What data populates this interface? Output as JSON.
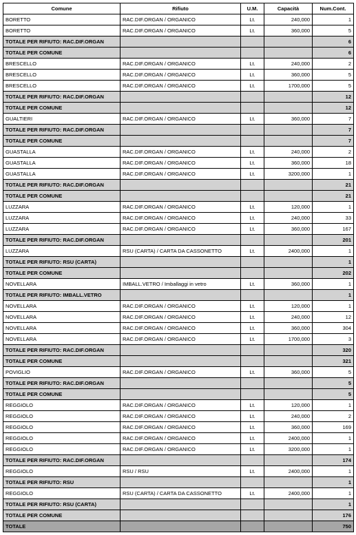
{
  "headers": [
    "Comune",
    "Rifiuto",
    "U.M.",
    "Capacità",
    "Num.Cont."
  ],
  "rows": [
    {
      "type": "data",
      "c1": "BORETTO",
      "c2": "RAC.DIF.ORGAN / ORGANICO",
      "um": "Lt.",
      "cap": "240,000",
      "num": "1"
    },
    {
      "type": "data",
      "c1": "BORETTO",
      "c2": "RAC.DIF.ORGAN / ORGANICO",
      "um": "Lt.",
      "cap": "360,000",
      "num": "5"
    },
    {
      "type": "sub",
      "c1": "TOTALE PER RIFIUTO: RAC.DIF.ORGAN",
      "num": "6"
    },
    {
      "type": "sub",
      "c1": "TOTALE PER COMUNE",
      "num": "6"
    },
    {
      "type": "data",
      "c1": "BRESCELLO",
      "c2": "RAC.DIF.ORGAN / ORGANICO",
      "um": "Lt.",
      "cap": "240,000",
      "num": "2"
    },
    {
      "type": "data",
      "c1": "BRESCELLO",
      "c2": "RAC.DIF.ORGAN / ORGANICO",
      "um": "Lt.",
      "cap": "360,000",
      "num": "5"
    },
    {
      "type": "data",
      "c1": "BRESCELLO",
      "c2": "RAC.DIF.ORGAN / ORGANICO",
      "um": "Lt.",
      "cap": "1700,000",
      "num": "5"
    },
    {
      "type": "sub",
      "c1": "TOTALE PER RIFIUTO: RAC.DIF.ORGAN",
      "num": "12"
    },
    {
      "type": "sub",
      "c1": "TOTALE PER COMUNE",
      "num": "12"
    },
    {
      "type": "data",
      "c1": "GUALTIERI",
      "c2": "RAC.DIF.ORGAN / ORGANICO",
      "um": "Lt.",
      "cap": "360,000",
      "num": "7"
    },
    {
      "type": "sub",
      "c1": "TOTALE PER RIFIUTO: RAC.DIF.ORGAN",
      "num": "7"
    },
    {
      "type": "sub",
      "c1": "TOTALE PER COMUNE",
      "num": "7"
    },
    {
      "type": "data",
      "c1": "GUASTALLA",
      "c2": "RAC.DIF.ORGAN / ORGANICO",
      "um": "Lt.",
      "cap": "240,000",
      "num": "2"
    },
    {
      "type": "data",
      "c1": "GUASTALLA",
      "c2": "RAC.DIF.ORGAN / ORGANICO",
      "um": "Lt.",
      "cap": "360,000",
      "num": "18"
    },
    {
      "type": "data",
      "c1": "GUASTALLA",
      "c2": "RAC.DIF.ORGAN / ORGANICO",
      "um": "Lt.",
      "cap": "3200,000",
      "num": "1"
    },
    {
      "type": "sub",
      "c1": "TOTALE PER RIFIUTO: RAC.DIF.ORGAN",
      "num": "21"
    },
    {
      "type": "sub",
      "c1": "TOTALE PER COMUNE",
      "num": "21"
    },
    {
      "type": "data",
      "c1": "LUZZARA",
      "c2": "RAC.DIF.ORGAN / ORGANICO",
      "um": "Lt.",
      "cap": "120,000",
      "num": "1"
    },
    {
      "type": "data",
      "c1": "LUZZARA",
      "c2": "RAC.DIF.ORGAN / ORGANICO",
      "um": "Lt.",
      "cap": "240,000",
      "num": "33"
    },
    {
      "type": "data",
      "c1": "LUZZARA",
      "c2": "RAC.DIF.ORGAN / ORGANICO",
      "um": "Lt.",
      "cap": "360,000",
      "num": "167"
    },
    {
      "type": "sub",
      "c1": "TOTALE PER RIFIUTO: RAC.DIF.ORGAN",
      "num": "201"
    },
    {
      "type": "data",
      "c1": "LUZZARA",
      "c2": "RSU (CARTA) / CARTA DA CASSONETTO",
      "um": "Lt.",
      "cap": "2400,000",
      "num": "1"
    },
    {
      "type": "sub",
      "c1": "TOTALE PER RIFIUTO: RSU (CARTA)",
      "num": "1"
    },
    {
      "type": "sub",
      "c1": "TOTALE PER COMUNE",
      "num": "202"
    },
    {
      "type": "data",
      "c1": "NOVELLARA",
      "c2": "IMBALL.VETRO / Imballaggi in vetro",
      "um": "Lt.",
      "cap": "360,000",
      "num": "1"
    },
    {
      "type": "sub",
      "c1": "TOTALE PER RIFIUTO: IMBALL.VETRO",
      "num": "1"
    },
    {
      "type": "data",
      "c1": "NOVELLARA",
      "c2": "RAC.DIF.ORGAN / ORGANICO",
      "um": "Lt.",
      "cap": "120,000",
      "num": "1"
    },
    {
      "type": "data",
      "c1": "NOVELLARA",
      "c2": "RAC.DIF.ORGAN / ORGANICO",
      "um": "Lt.",
      "cap": "240,000",
      "num": "12"
    },
    {
      "type": "data",
      "c1": "NOVELLARA",
      "c2": "RAC.DIF.ORGAN / ORGANICO",
      "um": "Lt.",
      "cap": "360,000",
      "num": "304"
    },
    {
      "type": "data",
      "c1": "NOVELLARA",
      "c2": "RAC.DIF.ORGAN / ORGANICO",
      "um": "Lt.",
      "cap": "1700,000",
      "num": "3"
    },
    {
      "type": "sub",
      "c1": "TOTALE PER RIFIUTO: RAC.DIF.ORGAN",
      "num": "320"
    },
    {
      "type": "sub",
      "c1": "TOTALE PER COMUNE",
      "num": "321"
    },
    {
      "type": "data",
      "c1": "POVIGLIO",
      "c2": "RAC.DIF.ORGAN / ORGANICO",
      "um": "Lt.",
      "cap": "360,000",
      "num": "5"
    },
    {
      "type": "sub",
      "c1": "TOTALE PER RIFIUTO: RAC.DIF.ORGAN",
      "num": "5"
    },
    {
      "type": "sub",
      "c1": "TOTALE PER COMUNE",
      "num": "5"
    },
    {
      "type": "data",
      "c1": "REGGIOLO",
      "c2": "RAC.DIF.ORGAN / ORGANICO",
      "um": "Lt.",
      "cap": "120,000",
      "num": "1"
    },
    {
      "type": "data",
      "c1": "REGGIOLO",
      "c2": "RAC.DIF.ORGAN / ORGANICO",
      "um": "Lt.",
      "cap": "240,000",
      "num": "2"
    },
    {
      "type": "data",
      "c1": "REGGIOLO",
      "c2": "RAC.DIF.ORGAN / ORGANICO",
      "um": "Lt.",
      "cap": "360,000",
      "num": "169"
    },
    {
      "type": "data",
      "c1": "REGGIOLO",
      "c2": "RAC.DIF.ORGAN / ORGANICO",
      "um": "Lt.",
      "cap": "2400,000",
      "num": "1"
    },
    {
      "type": "data",
      "c1": "REGGIOLO",
      "c2": "RAC.DIF.ORGAN / ORGANICO",
      "um": "Lt.",
      "cap": "3200,000",
      "num": "1"
    },
    {
      "type": "sub",
      "c1": "TOTALE PER RIFIUTO: RAC.DIF.ORGAN",
      "num": "174"
    },
    {
      "type": "data",
      "c1": "REGGIOLO",
      "c2": "RSU / RSU",
      "um": "Lt.",
      "cap": "2400,000",
      "num": "1"
    },
    {
      "type": "sub",
      "c1": "TOTALE PER RIFIUTO: RSU",
      "num": "1"
    },
    {
      "type": "data",
      "c1": "REGGIOLO",
      "c2": "RSU (CARTA) / CARTA DA CASSONETTO",
      "um": "Lt.",
      "cap": "2400,000",
      "num": "1"
    },
    {
      "type": "sub",
      "c1": "TOTALE PER RIFIUTO: RSU (CARTA)",
      "num": "1"
    },
    {
      "type": "sub",
      "c1": "TOTALE PER COMUNE",
      "num": "176"
    },
    {
      "type": "total",
      "c1": "TOTALE",
      "num": "750"
    }
  ]
}
